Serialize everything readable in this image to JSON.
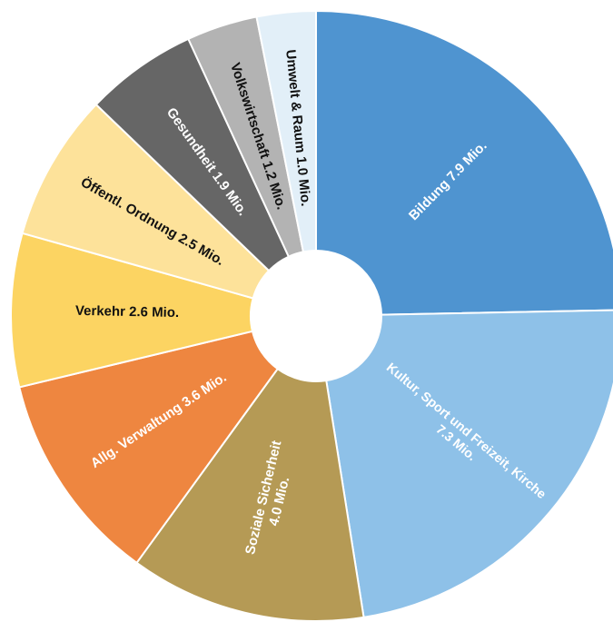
{
  "chart_data": {
    "type": "donut",
    "categories": [
      "Bildung",
      "Kultur, Sport und Freizeit, Kirche",
      "Soziale Sicherheit",
      "Allg. Verwaltung",
      "Verkehr",
      "Öffentl. Ordnung",
      "Gesundheit",
      "Volkswirtschaft",
      "Umwelt & Raum"
    ],
    "values": [
      7.9,
      7.3,
      4.0,
      3.6,
      2.6,
      2.5,
      1.9,
      1.2,
      1.0
    ],
    "value_labels": [
      "7.9 Mio.",
      "7.3 Mio.",
      "4.0 Mio.",
      "3.6 Mio.",
      "2.6 Mio.",
      "2.5 Mio.",
      "1.9 Mio.",
      "1.2 Mio.",
      "1.0 Mio."
    ],
    "colors": [
      "#4f94d0",
      "#8ec1e8",
      "#b59a55",
      "#ee8640",
      "#fcd462",
      "#fde29a",
      "#666666",
      "#b3b3b3",
      "#e2eff8"
    ],
    "label_colors": [
      "#ffffff",
      "#ffffff",
      "#ffffff",
      "#ffffff",
      "#111111",
      "#111111",
      "#ffffff",
      "#111111",
      "#111111"
    ]
  }
}
